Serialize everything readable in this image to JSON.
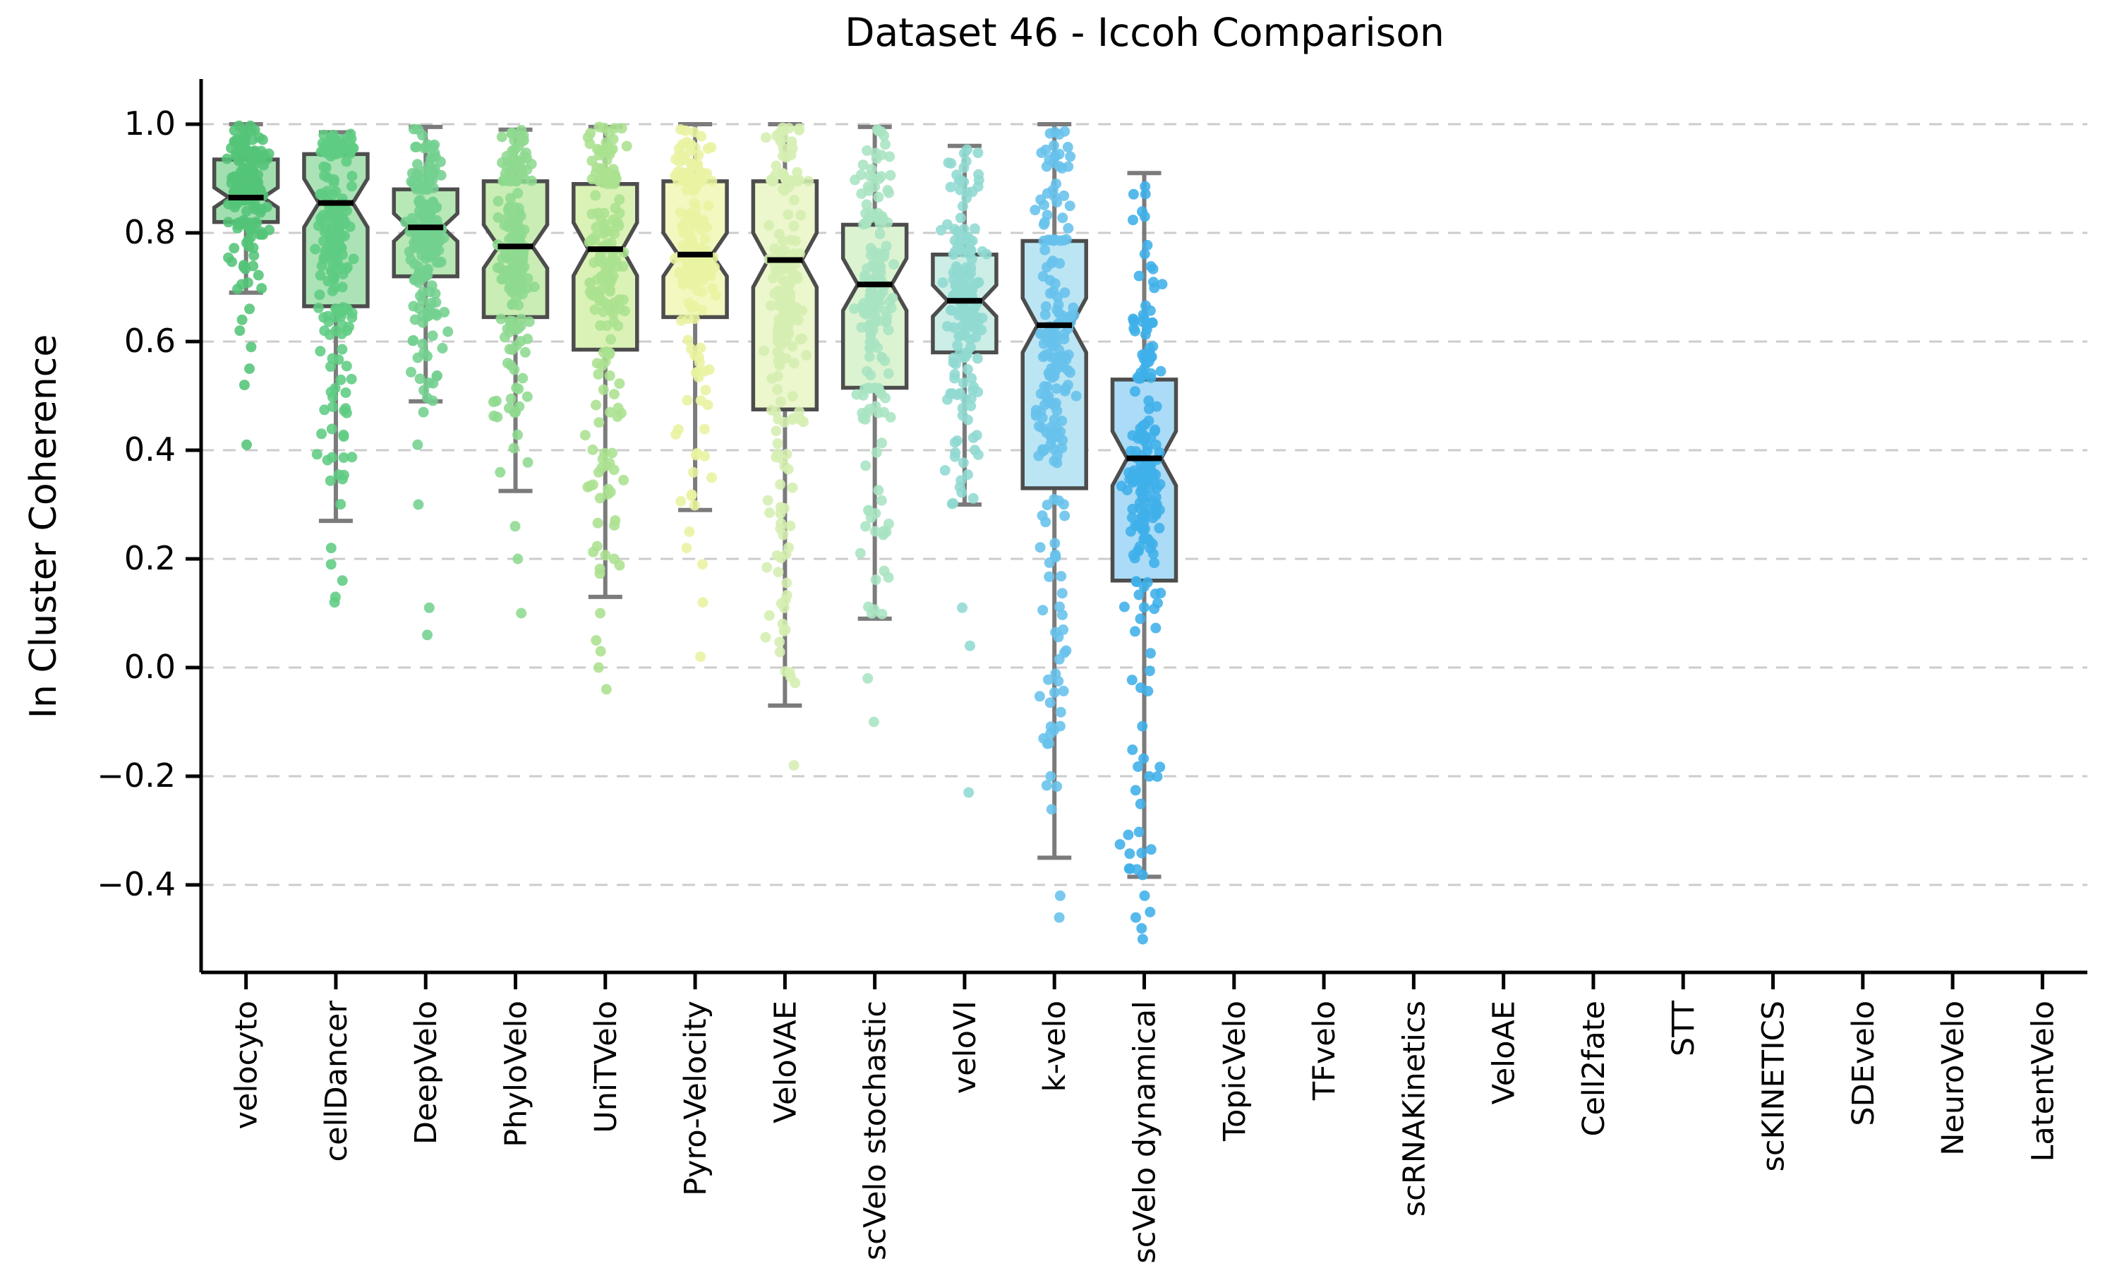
{
  "title": "Dataset 46 - Iccoh Comparison",
  "y_axis": {
    "label": "In Cluster Coherence",
    "tick_labels": [
      "1.0",
      "0.8",
      "0.6",
      "0.4",
      "0.2",
      "0.0",
      "−0.2",
      "−0.4"
    ],
    "tick_values": [
      1.0,
      0.8,
      0.6,
      0.4,
      0.2,
      0.0,
      -0.2,
      -0.4
    ]
  },
  "style": {
    "background": "#ffffff",
    "grid_color": "#cccccc",
    "axis_color": "#000000",
    "whisker_color": "#7b7b7b",
    "box_edge_color": "#4d4d4d",
    "median_color": "#000000",
    "text_color": "#000000"
  },
  "chart_data": {
    "type": "boxplot",
    "subtype": "notched-boxplot-with-strip-points",
    "title": "Dataset 46 - Iccoh Comparison",
    "xlabel": "",
    "ylabel": "In Cluster Coherence",
    "ylim": [
      -0.56,
      1.08
    ],
    "grid": "horizontal-dashed",
    "legend": "none",
    "categories": [
      "velocyto",
      "cellDancer",
      "DeepVelo",
      "PhyloVelo",
      "UniTVelo",
      "Pyro-Velocity",
      "VeloVAE",
      "scVelo stochastic",
      "veloVI",
      "k-velo",
      "scVelo dynamical",
      "TopicVelo",
      "TFvelo",
      "scRNAKinetics",
      "VeloAE",
      "Cell2fate",
      "STT",
      "scKINETICS",
      "SDEvelo",
      "NeuroVelo",
      "LatentVelo"
    ],
    "series": [
      {
        "name": "velocyto",
        "box": {
          "whisker_low": 0.69,
          "q1": 0.82,
          "median": 0.865,
          "q3": 0.935,
          "whisker_high": 1.0
        },
        "outliers": [
          0.66,
          0.64,
          0.62,
          0.59,
          0.55,
          0.52,
          0.41
        ],
        "n_points": 170,
        "dot_color": "#53c478",
        "fill_color": "#a2dfb0"
      },
      {
        "name": "cellDancer",
        "box": {
          "whisker_low": 0.27,
          "q1": 0.665,
          "median": 0.855,
          "q3": 0.945,
          "whisker_high": 0.985
        },
        "outliers": [
          0.22,
          0.19,
          0.16,
          0.13,
          0.12
        ],
        "n_points": 200,
        "dot_color": "#5ecc83",
        "fill_color": "#abe3b6"
      },
      {
        "name": "DeepVelo",
        "box": {
          "whisker_low": 0.49,
          "q1": 0.72,
          "median": 0.81,
          "q3": 0.88,
          "whisker_high": 0.995
        },
        "outliers": [
          0.47,
          0.41,
          0.3,
          0.11,
          0.06
        ],
        "n_points": 190,
        "dot_color": "#73d08f",
        "fill_color": "#b8e8b5"
      },
      {
        "name": "PhyloVelo",
        "box": {
          "whisker_low": 0.325,
          "q1": 0.645,
          "median": 0.775,
          "q3": 0.895,
          "whisker_high": 0.99
        },
        "outliers": [
          0.26,
          0.2,
          0.1
        ],
        "n_points": 180,
        "dot_color": "#8ed98f",
        "fill_color": "#c9edb5"
      },
      {
        "name": "UniTVelo",
        "box": {
          "whisker_low": 0.13,
          "q1": 0.585,
          "median": 0.77,
          "q3": 0.89,
          "whisker_high": 0.995
        },
        "outliers": [
          0.1,
          0.05,
          0.03,
          0.0,
          -0.04
        ],
        "n_points": 180,
        "dot_color": "#abe18f",
        "fill_color": "#dbf2b6"
      },
      {
        "name": "Pyro-Velocity",
        "box": {
          "whisker_low": 0.29,
          "q1": 0.645,
          "median": 0.76,
          "q3": 0.895,
          "whisker_high": 1.0
        },
        "outliers": [
          0.25,
          0.22,
          0.19,
          0.12,
          0.02
        ],
        "n_points": 170,
        "dot_color": "#e9f2a0",
        "fill_color": "#f2f8c0"
      },
      {
        "name": "VeloVAE",
        "box": {
          "whisker_low": -0.07,
          "q1": 0.475,
          "median": 0.75,
          "q3": 0.895,
          "whisker_high": 1.0
        },
        "outliers": [
          -0.18
        ],
        "n_points": 190,
        "dot_color": "#d5eeb0",
        "fill_color": "#ecf7cd"
      },
      {
        "name": "scVelo stochastic",
        "box": {
          "whisker_low": 0.09,
          "q1": 0.515,
          "median": 0.705,
          "q3": 0.815,
          "whisker_high": 0.995
        },
        "outliers": [
          -0.02,
          -0.1
        ],
        "n_points": 180,
        "dot_color": "#a8e4c2",
        "fill_color": "#dcf3d2"
      },
      {
        "name": "veloVI",
        "box": {
          "whisker_low": 0.3,
          "q1": 0.58,
          "median": 0.675,
          "q3": 0.76,
          "whisker_high": 0.96
        },
        "outliers": [
          0.11,
          0.04,
          -0.23
        ],
        "n_points": 170,
        "dot_color": "#90dad2",
        "fill_color": "#cdeee6"
      },
      {
        "name": "k-velo",
        "box": {
          "whisker_low": -0.35,
          "q1": 0.33,
          "median": 0.63,
          "q3": 0.785,
          "whisker_high": 1.0
        },
        "outliers": [
          -0.42,
          -0.46
        ],
        "n_points": 200,
        "dot_color": "#66c2ec",
        "fill_color": "#bce5f4"
      },
      {
        "name": "scVelo dynamical",
        "box": {
          "whisker_low": -0.385,
          "q1": 0.16,
          "median": 0.385,
          "q3": 0.53,
          "whisker_high": 0.91
        },
        "outliers": [
          -0.42,
          -0.45,
          -0.46,
          -0.48,
          -0.5
        ],
        "n_points": 200,
        "dot_color": "#3fafe9",
        "fill_color": "#abdbf6"
      },
      {
        "name": "TopicVelo",
        "box": null,
        "outliers": [],
        "n_points": 0,
        "dot_color": "",
        "fill_color": ""
      },
      {
        "name": "TFvelo",
        "box": null,
        "outliers": [],
        "n_points": 0,
        "dot_color": "",
        "fill_color": ""
      },
      {
        "name": "scRNAKinetics",
        "box": null,
        "outliers": [],
        "n_points": 0,
        "dot_color": "",
        "fill_color": ""
      },
      {
        "name": "VeloAE",
        "box": null,
        "outliers": [],
        "n_points": 0,
        "dot_color": "",
        "fill_color": ""
      },
      {
        "name": "Cell2fate",
        "box": null,
        "outliers": [],
        "n_points": 0,
        "dot_color": "",
        "fill_color": ""
      },
      {
        "name": "STT",
        "box": null,
        "outliers": [],
        "n_points": 0,
        "dot_color": "",
        "fill_color": ""
      },
      {
        "name": "scKINETICS",
        "box": null,
        "outliers": [],
        "n_points": 0,
        "dot_color": "",
        "fill_color": ""
      },
      {
        "name": "SDEvelo",
        "box": null,
        "outliers": [],
        "n_points": 0,
        "dot_color": "",
        "fill_color": ""
      },
      {
        "name": "NeuroVelo",
        "box": null,
        "outliers": [],
        "n_points": 0,
        "dot_color": "",
        "fill_color": ""
      },
      {
        "name": "LatentVelo",
        "box": null,
        "outliers": [],
        "n_points": 0,
        "dot_color": "",
        "fill_color": ""
      }
    ]
  }
}
